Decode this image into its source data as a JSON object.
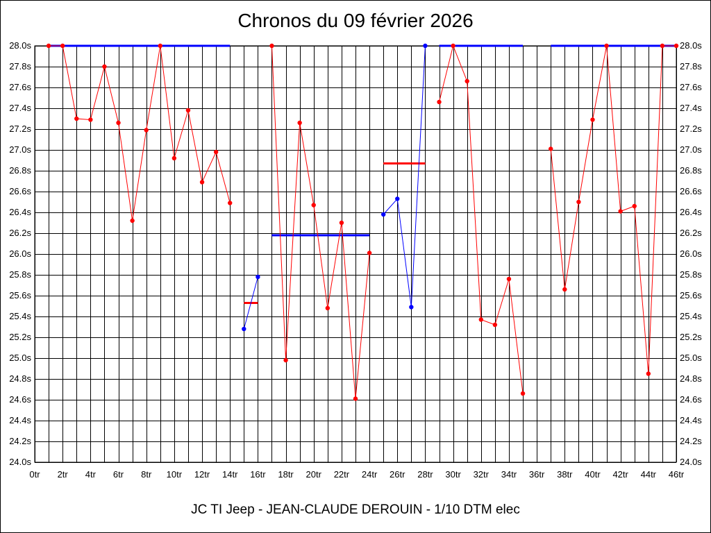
{
  "chart_data": {
    "type": "line",
    "title": "Chronos du 09 février 2026",
    "subtitle": "JC TI Jeep - JEAN-CLAUDE DEROUIN - 1/10 DTM elec",
    "xlim": [
      0,
      46
    ],
    "ylim": [
      24.0,
      28.0
    ],
    "x_ticks": [
      "0tr",
      "2tr",
      "4tr",
      "6tr",
      "8tr",
      "10tr",
      "12tr",
      "14tr",
      "16tr",
      "18tr",
      "20tr",
      "22tr",
      "24tr",
      "26tr",
      "28tr",
      "30tr",
      "32tr",
      "34tr",
      "36tr",
      "38tr",
      "40tr",
      "42tr",
      "44tr",
      "46tr"
    ],
    "y_ticks": [
      "24.0s",
      "24.2s",
      "24.4s",
      "24.6s",
      "24.8s",
      "25.0s",
      "25.2s",
      "25.4s",
      "25.6s",
      "25.8s",
      "26.0s",
      "26.2s",
      "26.4s",
      "26.6s",
      "26.8s",
      "27.0s",
      "27.2s",
      "27.4s",
      "27.6s",
      "27.8s",
      "28.0s"
    ],
    "grid": true,
    "colors": {
      "red": "#ff0000",
      "blue": "#0000ff",
      "grid": "#000000"
    },
    "series": [
      {
        "color": "red",
        "x": [
          1,
          2,
          3,
          4,
          5,
          6,
          7,
          8,
          9,
          10,
          11,
          12,
          13,
          14
        ],
        "y": [
          28.0,
          28.0,
          27.3,
          27.29,
          27.8,
          27.26,
          26.32,
          27.19,
          28.0,
          26.92,
          27.38,
          26.69,
          26.98,
          26.49
        ]
      },
      {
        "color": "blue",
        "x": [
          15,
          16
        ],
        "y": [
          25.28,
          25.78
        ]
      },
      {
        "color": "red",
        "x": [
          17,
          18,
          19,
          20,
          21,
          22,
          23,
          24
        ],
        "y": [
          28.0,
          24.98,
          27.26,
          26.47,
          25.48,
          26.3,
          24.61,
          26.01
        ]
      },
      {
        "color": "blue",
        "x": [
          25,
          26,
          27,
          28
        ],
        "y": [
          26.38,
          26.53,
          25.49,
          28.0
        ]
      },
      {
        "color": "red",
        "x": [
          29,
          30,
          31,
          32,
          33,
          34,
          35
        ],
        "y": [
          27.46,
          28.0,
          27.66,
          25.37,
          25.32,
          25.76,
          24.66
        ]
      },
      {
        "color": "red",
        "x": [
          37,
          38,
          39,
          40,
          41,
          42,
          43,
          44,
          45,
          46
        ],
        "y": [
          27.01,
          25.66,
          26.5,
          27.29,
          28.0,
          26.41,
          26.46,
          24.85,
          28.0,
          28.0
        ]
      }
    ],
    "average_lines": [
      {
        "color": "blue",
        "x1": 1,
        "x2": 14,
        "y": 28.0
      },
      {
        "color": "red",
        "x1": 15,
        "x2": 16,
        "y": 25.53
      },
      {
        "color": "blue",
        "x1": 17,
        "x2": 24,
        "y": 26.18
      },
      {
        "color": "red",
        "x1": 25,
        "x2": 28,
        "y": 26.87
      },
      {
        "color": "blue",
        "x1": 29,
        "x2": 35,
        "y": 28.0
      },
      {
        "color": "blue",
        "x1": 37,
        "x2": 46,
        "y": 28.0
      }
    ]
  }
}
